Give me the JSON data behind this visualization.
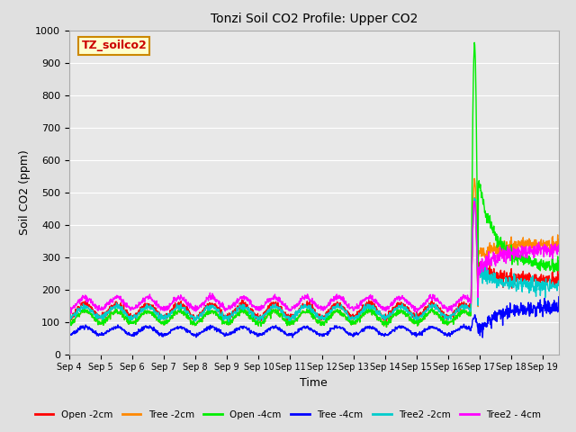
{
  "title": "Tonzi Soil CO2 Profile: Upper CO2",
  "xlabel": "Time",
  "ylabel": "Soil CO2 (ppm)",
  "ylim": [
    0,
    1000
  ],
  "yticks": [
    0,
    100,
    200,
    300,
    400,
    500,
    600,
    700,
    800,
    900,
    1000
  ],
  "fig_bg_color": "#e0e0e0",
  "plot_bg_color": "#e8e8e8",
  "grid_color": "#ffffff",
  "watermark_text": "TZ_soilco2",
  "watermark_bg": "#ffffcc",
  "watermark_border": "#cc8800",
  "watermark_text_color": "#cc0000",
  "series": [
    {
      "label": "Open -2cm",
      "color": "#ff0000"
    },
    {
      "label": "Tree -2cm",
      "color": "#ff8800"
    },
    {
      "label": "Open -4cm",
      "color": "#00ee00"
    },
    {
      "label": "Tree -4cm",
      "color": "#0000ff"
    },
    {
      "label": "Tree2 -2cm",
      "color": "#00cccc"
    },
    {
      "label": "Tree2 - 4cm",
      "color": "#ff00ff"
    }
  ],
  "x_tick_labels": [
    "Sep 4",
    "Sep 5",
    "Sep 6",
    "Sep 7",
    "Sep 8",
    "Sep 9",
    "Sep 10",
    "Sep 11",
    "Sep 12",
    "Sep 13",
    "Sep 14",
    "Sep 15",
    "Sep 16",
    "Sep 17",
    "Sep 18",
    "Sep 19"
  ],
  "spike_day": 12.8,
  "spike_values": [
    480,
    540,
    960,
    118,
    480,
    475
  ],
  "post_spike_values": [
    230,
    340,
    270,
    145,
    210,
    320
  ],
  "base_means": [
    135,
    115,
    115,
    72,
    130,
    158
  ],
  "base_amplitudes": [
    20,
    18,
    18,
    12,
    18,
    18
  ],
  "lw": 1.0
}
